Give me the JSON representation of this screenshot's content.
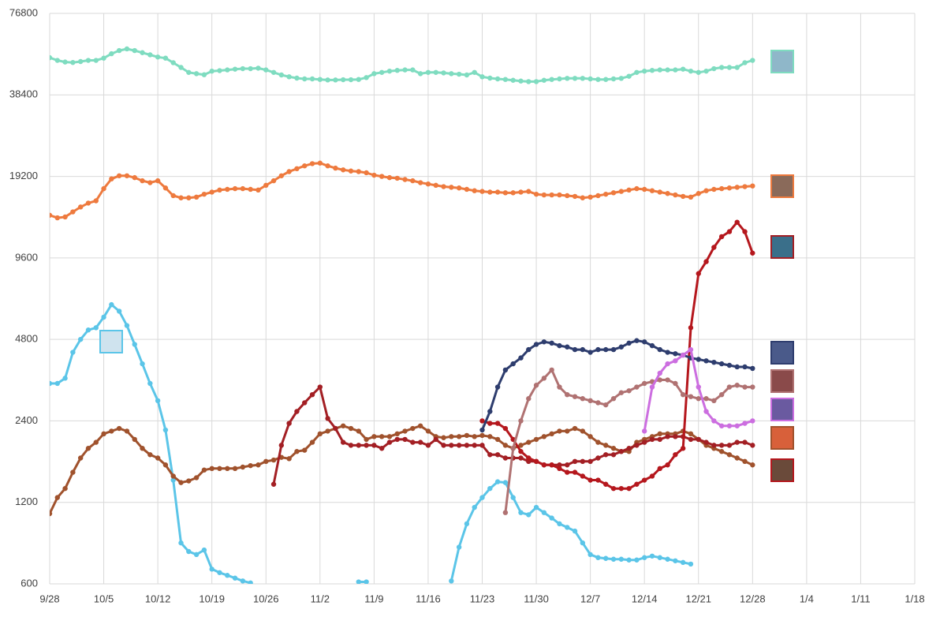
{
  "chart_data": {
    "type": "line",
    "yscale": "log",
    "grid": true,
    "ylim": [
      600,
      76800
    ],
    "yticks": [
      600,
      1200,
      2400,
      4800,
      9600,
      19200,
      38400,
      76800
    ],
    "categories": [
      "9/28",
      null,
      null,
      null,
      null,
      null,
      null,
      "10/5",
      null,
      null,
      null,
      null,
      null,
      null,
      "10/12",
      null,
      null,
      null,
      null,
      null,
      null,
      "10/19",
      null,
      null,
      null,
      null,
      null,
      null,
      "10/26",
      null,
      null,
      null,
      null,
      null,
      null,
      "11/2",
      null,
      null,
      null,
      null,
      null,
      null,
      "11/9",
      null,
      null,
      null,
      null,
      null,
      null,
      "11/16",
      null,
      null,
      null,
      null,
      null,
      null,
      "11/23",
      null,
      null,
      null,
      null,
      null,
      null,
      "11/30",
      null,
      null,
      null,
      null,
      null,
      null,
      "12/7",
      null,
      null,
      null,
      null,
      null,
      null,
      "12/14",
      null,
      null,
      null,
      null,
      null,
      null,
      "12/21",
      null,
      null,
      null,
      null,
      null,
      null,
      "12/28",
      null,
      null,
      null,
      null,
      null,
      null,
      "1/4",
      null,
      null,
      null,
      null,
      null,
      null,
      "1/11",
      null,
      null,
      null,
      null,
      null,
      null,
      "1/18"
    ],
    "series": [
      {
        "color": "#7fdcc0",
        "values": [
          52700,
          51500,
          50800,
          50600,
          51000,
          51500,
          51500,
          52500,
          54500,
          56000,
          56800,
          56000,
          55000,
          54000,
          53000,
          52500,
          50500,
          48500,
          46500,
          46000,
          45600,
          47000,
          47200,
          47500,
          47800,
          48000,
          48000,
          48200,
          47500,
          46500,
          45500,
          44800,
          44300,
          44000,
          44000,
          43800,
          43600,
          43600,
          43700,
          43700,
          43800,
          44500,
          46000,
          46500,
          47000,
          47300,
          47500,
          47500,
          46000,
          46500,
          46500,
          46300,
          46000,
          45800,
          45500,
          46500,
          44800,
          44300,
          44000,
          43800,
          43500,
          43200,
          43000,
          43000,
          43500,
          43800,
          44000,
          44200,
          44200,
          44200,
          44000,
          43800,
          43800,
          44000,
          44200,
          45000,
          46500,
          47000,
          47300,
          47500,
          47500,
          47500,
          47800,
          47000,
          46500,
          47000,
          48000,
          48500,
          48500,
          48500,
          50500,
          51500,
          null,
          null,
          null,
          null,
          null,
          null,
          null,
          null,
          null,
          null,
          null,
          null,
          null,
          null,
          null,
          null,
          null,
          null,
          null,
          null,
          null
        ]
      },
      {
        "color": "#ee7a3e",
        "values": [
          13800,
          13500,
          13600,
          14200,
          14800,
          15300,
          15600,
          17300,
          18800,
          19300,
          19300,
          19000,
          18500,
          18200,
          18500,
          17400,
          16300,
          16000,
          16000,
          16100,
          16500,
          16800,
          17100,
          17200,
          17300,
          17300,
          17200,
          17100,
          17800,
          18500,
          19300,
          20000,
          20500,
          21000,
          21400,
          21500,
          21000,
          20600,
          20300,
          20100,
          20000,
          19800,
          19400,
          19200,
          19000,
          18900,
          18700,
          18500,
          18200,
          18000,
          17800,
          17600,
          17500,
          17400,
          17200,
          17000,
          16900,
          16800,
          16800,
          16700,
          16700,
          16800,
          16900,
          16500,
          16400,
          16400,
          16400,
          16300,
          16200,
          16000,
          16100,
          16300,
          16500,
          16700,
          16900,
          17100,
          17300,
          17200,
          17000,
          16800,
          16600,
          16400,
          16200,
          16100,
          16600,
          17000,
          17200,
          17300,
          17400,
          17500,
          17600,
          17700,
          null,
          null,
          null,
          null,
          null,
          null,
          null,
          null,
          null,
          null,
          null,
          null,
          null,
          null,
          null,
          null,
          null,
          null,
          null,
          null,
          null
        ]
      },
      {
        "color": "#5bc5e8",
        "values": [
          3300,
          3300,
          3450,
          4300,
          4800,
          5200,
          5300,
          5800,
          6450,
          6100,
          5400,
          4600,
          3900,
          3300,
          2850,
          2220,
          1450,
          850,
          790,
          770,
          800,
          680,
          660,
          645,
          630,
          615,
          605,
          null,
          null,
          null,
          null,
          null,
          null,
          null,
          null,
          null,
          null,
          null,
          null,
          null,
          610,
          610,
          null,
          null,
          null,
          null,
          null,
          null,
          null,
          null,
          null,
          null,
          615,
          820,
          1000,
          1150,
          1250,
          1350,
          1430,
          1420,
          1250,
          1100,
          1080,
          1150,
          1100,
          1050,
          1000,
          970,
          940,
          850,
          770,
          750,
          745,
          740,
          740,
          735,
          735,
          750,
          760,
          750,
          740,
          730,
          720,
          710,
          null,
          null,
          null,
          null,
          null,
          null,
          null,
          null,
          null,
          null,
          null,
          null,
          null,
          null,
          null,
          null,
          null,
          null,
          null,
          null,
          null,
          null,
          null,
          null,
          null,
          null,
          null,
          null,
          null
        ]
      },
      {
        "color": "#a0522d",
        "values": [
          1090,
          1250,
          1350,
          1550,
          1750,
          1900,
          2000,
          2150,
          2200,
          2250,
          2200,
          2050,
          1900,
          1800,
          1750,
          1650,
          1500,
          1420,
          1440,
          1480,
          1580,
          1600,
          1600,
          1600,
          1600,
          1620,
          1640,
          1650,
          1700,
          1720,
          1760,
          1740,
          1850,
          1870,
          2000,
          2150,
          2200,
          2250,
          2300,
          2250,
          2200,
          2050,
          2100,
          2100,
          2100,
          2150,
          2200,
          2250,
          2300,
          2200,
          2100,
          2080,
          2100,
          2100,
          2120,
          2100,
          2120,
          2100,
          2050,
          1950,
          1900,
          1950,
          2000,
          2050,
          2100,
          2150,
          2200,
          2200,
          2250,
          2200,
          2100,
          2000,
          1950,
          1900,
          1850,
          1850,
          2000,
          2050,
          2100,
          2150,
          2150,
          2150,
          2200,
          2150,
          2050,
          1950,
          1900,
          1850,
          1800,
          1750,
          1700,
          1650,
          null,
          null,
          null,
          null,
          null,
          null,
          null,
          null,
          null,
          null,
          null,
          null,
          null,
          null,
          null,
          null,
          null,
          null,
          null,
          null,
          null
        ]
      },
      {
        "color": "#a31f24",
        "values": [
          null,
          null,
          null,
          null,
          null,
          null,
          null,
          null,
          null,
          null,
          null,
          null,
          null,
          null,
          null,
          null,
          null,
          null,
          null,
          null,
          null,
          null,
          null,
          null,
          null,
          null,
          null,
          null,
          null,
          1400,
          1950,
          2350,
          2600,
          2800,
          3000,
          3200,
          2450,
          2250,
          2000,
          1950,
          1950,
          1950,
          1950,
          1900,
          2000,
          2050,
          2050,
          2000,
          2000,
          1950,
          2050,
          1950,
          1950,
          1950,
          1950,
          1950,
          1950,
          1800,
          1800,
          1750,
          1750,
          1750,
          1700,
          1700,
          1650,
          1650,
          1650,
          1650,
          1700,
          1700,
          1700,
          1750,
          1800,
          1800,
          1850,
          1900,
          1950,
          2000,
          2050,
          2050,
          2100,
          2100,
          2100,
          2050,
          2050,
          2000,
          1950,
          1950,
          1950,
          2000,
          2000,
          1950,
          null,
          null,
          null,
          null,
          null,
          null,
          null,
          null,
          null,
          null,
          null,
          null,
          null,
          null,
          null,
          null,
          null,
          null,
          null,
          null,
          null
        ]
      },
      {
        "color": "#b5171d",
        "values": [
          null,
          null,
          null,
          null,
          null,
          null,
          null,
          null,
          null,
          null,
          null,
          null,
          null,
          null,
          null,
          null,
          null,
          null,
          null,
          null,
          null,
          null,
          null,
          null,
          null,
          null,
          null,
          null,
          null,
          null,
          null,
          null,
          null,
          null,
          null,
          null,
          null,
          null,
          null,
          null,
          null,
          null,
          null,
          null,
          null,
          null,
          null,
          null,
          null,
          null,
          null,
          null,
          null,
          null,
          null,
          null,
          2400,
          2350,
          2350,
          2250,
          2050,
          1850,
          1750,
          1700,
          1650,
          1650,
          1600,
          1550,
          1550,
          1500,
          1450,
          1450,
          1400,
          1350,
          1350,
          1350,
          1400,
          1450,
          1500,
          1600,
          1650,
          1800,
          1900,
          5300,
          8400,
          9300,
          10500,
          11500,
          12000,
          13000,
          12000,
          10000,
          null,
          null,
          null,
          null,
          null,
          null,
          null,
          null,
          null,
          null,
          null,
          null,
          null,
          null,
          null,
          null,
          null,
          null,
          null,
          null,
          null
        ]
      },
      {
        "color": "#2e3d6e",
        "values": [
          null,
          null,
          null,
          null,
          null,
          null,
          null,
          null,
          null,
          null,
          null,
          null,
          null,
          null,
          null,
          null,
          null,
          null,
          null,
          null,
          null,
          null,
          null,
          null,
          null,
          null,
          null,
          null,
          null,
          null,
          null,
          null,
          null,
          null,
          null,
          null,
          null,
          null,
          null,
          null,
          null,
          null,
          null,
          null,
          null,
          null,
          null,
          null,
          null,
          null,
          null,
          null,
          null,
          null,
          null,
          null,
          2220,
          2600,
          3200,
          3700,
          3900,
          4100,
          4400,
          4600,
          4700,
          4650,
          4550,
          4500,
          4400,
          4400,
          4300,
          4400,
          4400,
          4400,
          4500,
          4650,
          4750,
          4700,
          4550,
          4400,
          4300,
          4250,
          4200,
          4100,
          4050,
          4000,
          3950,
          3900,
          3850,
          3800,
          3800,
          3750,
          null,
          null,
          null,
          null,
          null,
          null,
          null,
          null,
          null,
          null,
          null,
          null,
          null,
          null,
          null,
          null,
          null,
          null,
          null,
          null,
          null
        ]
      },
      {
        "color": "#b07272",
        "values": [
          null,
          null,
          null,
          null,
          null,
          null,
          null,
          null,
          null,
          null,
          null,
          null,
          null,
          null,
          null,
          null,
          null,
          null,
          null,
          null,
          null,
          null,
          null,
          null,
          null,
          null,
          null,
          null,
          null,
          null,
          null,
          null,
          null,
          null,
          null,
          null,
          null,
          null,
          null,
          null,
          null,
          null,
          null,
          null,
          null,
          null,
          null,
          null,
          null,
          null,
          null,
          null,
          null,
          null,
          null,
          null,
          null,
          null,
          null,
          1100,
          1900,
          2400,
          2900,
          3250,
          3450,
          3700,
          3200,
          3000,
          2950,
          2900,
          2850,
          2800,
          2750,
          2900,
          3050,
          3100,
          3200,
          3300,
          3350,
          3400,
          3400,
          3300,
          3000,
          2950,
          2900,
          2900,
          2850,
          3000,
          3200,
          3250,
          3200,
          3200,
          null,
          null,
          null,
          null,
          null,
          null,
          null,
          null,
          null,
          null,
          null,
          null,
          null,
          null,
          null,
          null,
          null,
          null,
          null,
          null,
          null
        ]
      },
      {
        "color": "#cc6ee0",
        "values": [
          null,
          null,
          null,
          null,
          null,
          null,
          null,
          null,
          null,
          null,
          null,
          null,
          null,
          null,
          null,
          null,
          null,
          null,
          null,
          null,
          null,
          null,
          null,
          null,
          null,
          null,
          null,
          null,
          null,
          null,
          null,
          null,
          null,
          null,
          null,
          null,
          null,
          null,
          null,
          null,
          null,
          null,
          null,
          null,
          null,
          null,
          null,
          null,
          null,
          null,
          null,
          null,
          null,
          null,
          null,
          null,
          null,
          null,
          null,
          null,
          null,
          null,
          null,
          null,
          null,
          null,
          null,
          null,
          null,
          null,
          null,
          null,
          null,
          null,
          null,
          null,
          null,
          2200,
          3200,
          3600,
          3900,
          4000,
          4200,
          4400,
          3200,
          2600,
          2400,
          2300,
          2300,
          2300,
          2350,
          2400,
          null,
          null,
          null,
          null,
          null,
          null,
          null,
          null,
          null,
          null,
          null,
          null,
          null,
          null,
          null,
          null,
          null,
          null,
          null,
          null,
          null
        ]
      }
    ]
  }
}
